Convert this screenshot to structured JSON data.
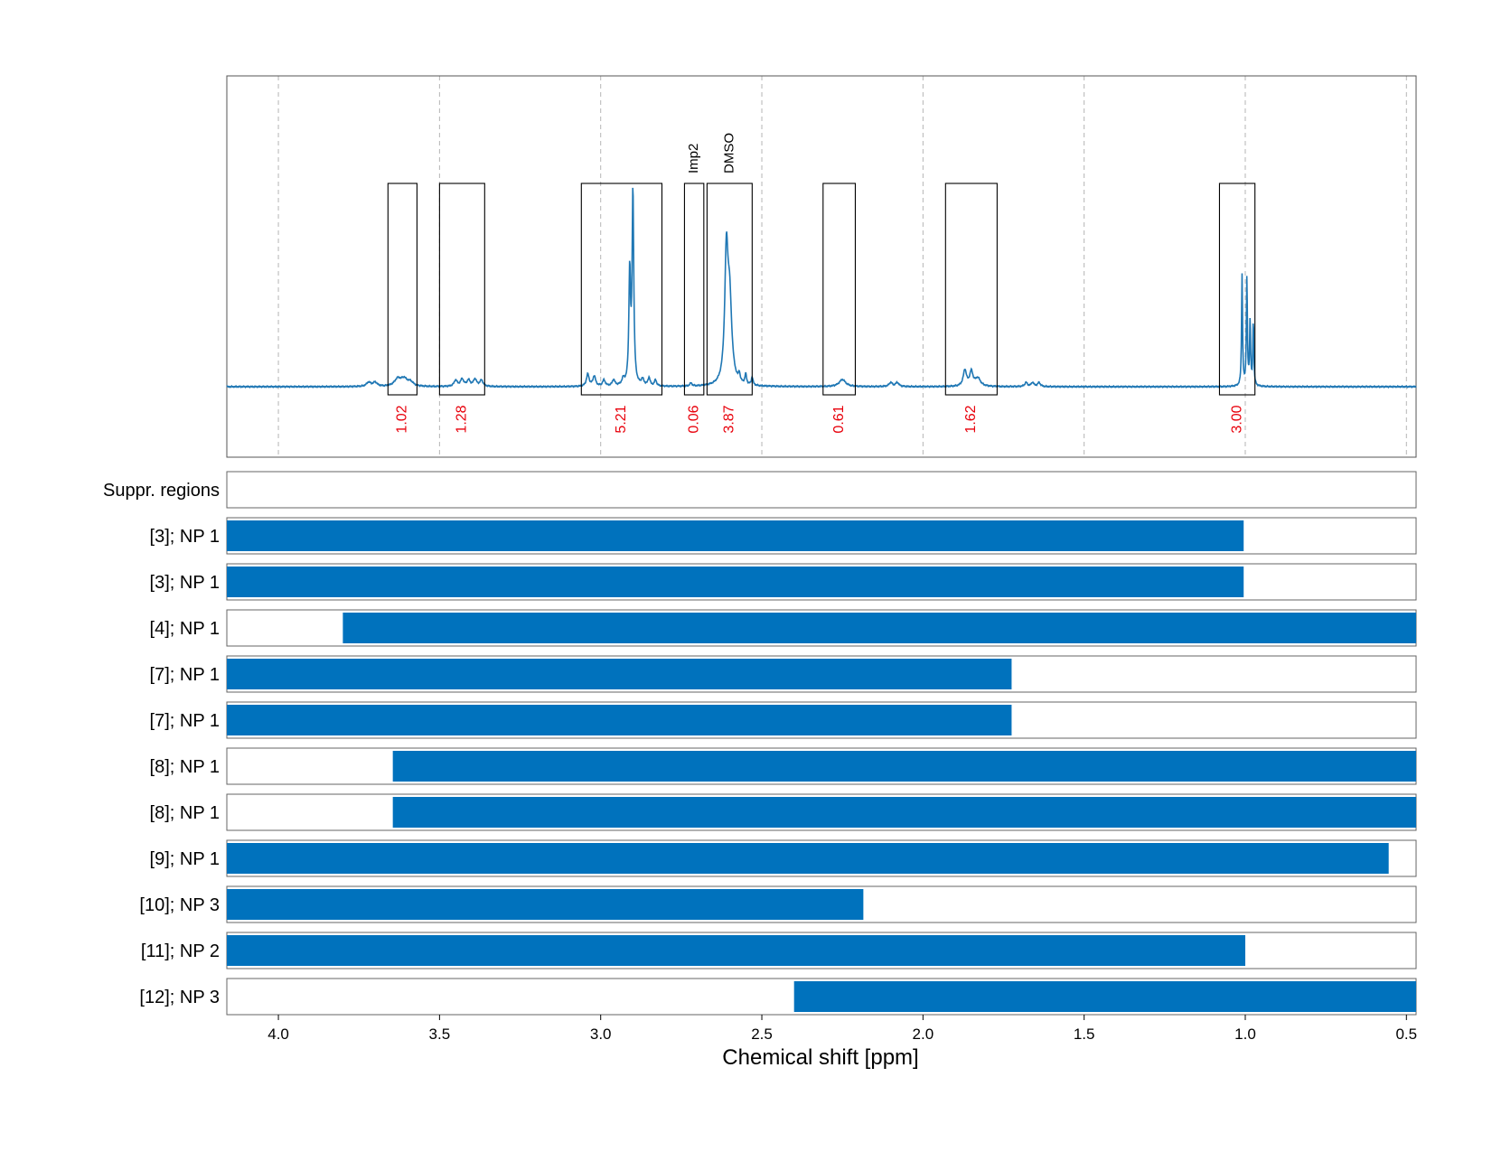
{
  "chart_data": {
    "type": "nmr-spectrum-with-region-bars",
    "xlabel": "Chemical shift [ppm]",
    "x_ticks": [
      "4.0",
      "3.5",
      "3.0",
      "2.5",
      "2.0",
      "1.5",
      "1.0",
      "0.5"
    ],
    "xlim": [
      4.16,
      0.47
    ],
    "grid": "vertical dashed",
    "colors": {
      "spectrum": "#1f77b4",
      "bar": "#0072bd",
      "integral": "#e8000b",
      "frame": "#000000"
    },
    "spectrum": {
      "baseline": 0,
      "peaks": [
        {
          "ppm": 3.72,
          "height": 0.02,
          "width": 0.008
        },
        {
          "ppm": 3.7,
          "height": 0.02,
          "width": 0.008
        },
        {
          "ppm": 3.63,
          "height": 0.035,
          "width": 0.012
        },
        {
          "ppm": 3.61,
          "height": 0.035,
          "width": 0.012
        },
        {
          "ppm": 3.59,
          "height": 0.02,
          "width": 0.01
        },
        {
          "ppm": 3.45,
          "height": 0.03,
          "width": 0.006
        },
        {
          "ppm": 3.43,
          "height": 0.035,
          "width": 0.006
        },
        {
          "ppm": 3.41,
          "height": 0.03,
          "width": 0.006
        },
        {
          "ppm": 3.39,
          "height": 0.035,
          "width": 0.006
        },
        {
          "ppm": 3.37,
          "height": 0.03,
          "width": 0.006
        },
        {
          "ppm": 3.04,
          "height": 0.06,
          "width": 0.005
        },
        {
          "ppm": 3.02,
          "height": 0.05,
          "width": 0.005
        },
        {
          "ppm": 2.99,
          "height": 0.03,
          "width": 0.005
        },
        {
          "ppm": 2.96,
          "height": 0.03,
          "width": 0.005
        },
        {
          "ppm": 2.93,
          "height": 0.03,
          "width": 0.005
        },
        {
          "ppm": 2.91,
          "height": 0.55,
          "width": 0.003
        },
        {
          "ppm": 2.9,
          "height": 0.95,
          "width": 0.003
        },
        {
          "ppm": 2.87,
          "height": 0.03,
          "width": 0.005
        },
        {
          "ppm": 2.85,
          "height": 0.04,
          "width": 0.004
        },
        {
          "ppm": 2.83,
          "height": 0.03,
          "width": 0.004
        },
        {
          "ppm": 2.72,
          "height": 0.015,
          "width": 0.004
        },
        {
          "ppm": 2.61,
          "height": 0.6,
          "width": 0.006
        },
        {
          "ppm": 2.6,
          "height": 0.4,
          "width": 0.008
        },
        {
          "ppm": 2.57,
          "height": 0.04,
          "width": 0.003
        },
        {
          "ppm": 2.55,
          "height": 0.05,
          "width": 0.003
        },
        {
          "ppm": 2.53,
          "height": 0.04,
          "width": 0.003
        },
        {
          "ppm": 2.25,
          "height": 0.035,
          "width": 0.012
        },
        {
          "ppm": 2.1,
          "height": 0.02,
          "width": 0.006
        },
        {
          "ppm": 2.08,
          "height": 0.02,
          "width": 0.006
        },
        {
          "ppm": 1.87,
          "height": 0.08,
          "width": 0.006
        },
        {
          "ppm": 1.85,
          "height": 0.07,
          "width": 0.006
        },
        {
          "ppm": 1.83,
          "height": 0.04,
          "width": 0.01
        },
        {
          "ppm": 1.68,
          "height": 0.02,
          "width": 0.005
        },
        {
          "ppm": 1.66,
          "height": 0.02,
          "width": 0.005
        },
        {
          "ppm": 1.64,
          "height": 0.02,
          "width": 0.005
        },
        {
          "ppm": 1.01,
          "height": 0.55,
          "width": 0.0018
        },
        {
          "ppm": 0.995,
          "height": 0.53,
          "width": 0.0018
        },
        {
          "ppm": 0.985,
          "height": 0.32,
          "width": 0.0018
        },
        {
          "ppm": 0.975,
          "height": 0.32,
          "width": 0.0018
        }
      ]
    },
    "integration_regions": [
      {
        "from": 3.66,
        "to": 3.57,
        "integral": "1.02"
      },
      {
        "from": 3.5,
        "to": 3.36,
        "integral": "1.28"
      },
      {
        "from": 3.06,
        "to": 2.81,
        "integral": "5.21"
      },
      {
        "from": 2.74,
        "to": 2.68,
        "integral": "0.06",
        "annotation": "Imp2"
      },
      {
        "from": 2.67,
        "to": 2.53,
        "integral": "3.87",
        "annotation": "DMSO"
      },
      {
        "from": 2.31,
        "to": 2.21,
        "integral": "0.61"
      },
      {
        "from": 1.93,
        "to": 1.77,
        "integral": "1.62"
      },
      {
        "from": 1.08,
        "to": 0.97,
        "integral": "3.00"
      }
    ],
    "rows": [
      {
        "label": "Suppr. regions",
        "from": null,
        "to": null
      },
      {
        "label": "[3]; NP 1",
        "from": 4.16,
        "to": 1.005
      },
      {
        "label": "[3]; NP 1",
        "from": 4.16,
        "to": 1.005
      },
      {
        "label": "[4]; NP 1",
        "from": 3.8,
        "to": 0.47
      },
      {
        "label": "[7]; NP 1",
        "from": 4.16,
        "to": 1.725
      },
      {
        "label": "[7]; NP 1",
        "from": 4.16,
        "to": 1.725
      },
      {
        "label": "[8]; NP 1",
        "from": 3.645,
        "to": 0.47
      },
      {
        "label": "[8]; NP 1",
        "from": 3.645,
        "to": 0.47
      },
      {
        "label": "[9]; NP 1",
        "from": 4.16,
        "to": 0.555
      },
      {
        "label": "[10]; NP 3",
        "from": 4.16,
        "to": 2.185
      },
      {
        "label": "[11]; NP 2",
        "from": 4.16,
        "to": 1.0
      },
      {
        "label": "[12]; NP 3",
        "from": 2.4,
        "to": 0.47
      }
    ]
  }
}
